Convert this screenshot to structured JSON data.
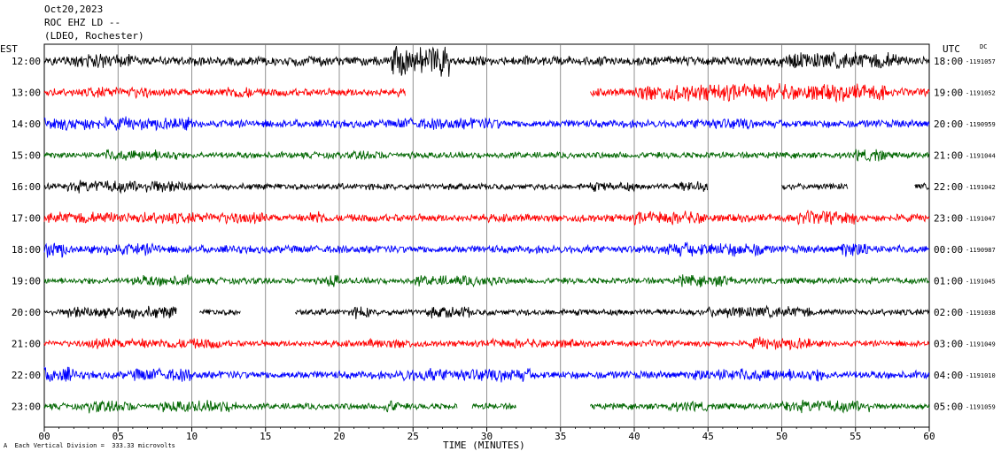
{
  "header": {
    "date": "Oct20,2023",
    "station": "ROC EHZ LD --",
    "network": "(LDEO, Rochester)"
  },
  "corner_left": "EST",
  "corner_right": "UTC",
  "dc_label": "DC",
  "footnote": "Each Vertical Division =  333.33 microvolts",
  "footnote_mark": "A",
  "chart_data": {
    "type": "line",
    "title": "",
    "xlabel": "TIME (MINUTES)",
    "xlim": [
      0,
      60
    ],
    "x_ticks": [
      "00",
      "05",
      "10",
      "15",
      "20",
      "25",
      "30",
      "35",
      "40",
      "45",
      "50",
      "55",
      "60"
    ],
    "grid": true,
    "trace_colors": [
      "#000000",
      "#ff0000",
      "#0000ff",
      "#006600"
    ],
    "rows": [
      {
        "est": "12:00",
        "utc": "18:00",
        "dc": "-1191057",
        "color": "#000000",
        "amp": 6,
        "gaps": [],
        "bursts": [
          [
            23.5,
            27.5,
            3.2
          ],
          [
            2,
            6,
            1.6
          ],
          [
            50,
            58,
            1.8
          ]
        ]
      },
      {
        "est": "13:00",
        "utc": "19:00",
        "dc": "-1191052",
        "color": "#ff0000",
        "amp": 5,
        "gaps": [
          [
            24.5,
            37
          ]
        ],
        "bursts": [
          [
            40,
            57,
            2.2
          ],
          [
            3,
            7,
            1.5
          ],
          [
            12,
            14,
            1.6
          ]
        ]
      },
      {
        "est": "14:00",
        "utc": "20:00",
        "dc": "-1190959",
        "color": "#0000ff",
        "amp": 5,
        "gaps": [],
        "bursts": [
          [
            0,
            10,
            1.7
          ],
          [
            24,
            31,
            1.5
          ],
          [
            44,
            48,
            1.5
          ]
        ]
      },
      {
        "est": "15:00",
        "utc": "21:00",
        "dc": "-1191044",
        "color": "#006600",
        "amp": 4,
        "gaps": [],
        "bursts": [
          [
            4,
            9,
            1.8
          ],
          [
            21,
            23,
            1.6
          ],
          [
            55,
            57,
            2.0
          ]
        ]
      },
      {
        "est": "16:00",
        "utc": "22:00",
        "dc": "-1191042",
        "color": "#000000",
        "amp": 4,
        "gaps": [
          [
            45,
            50
          ],
          [
            54.5,
            59
          ]
        ],
        "bursts": [
          [
            1.5,
            10,
            2.0
          ],
          [
            37,
            40,
            1.5
          ],
          [
            43,
            45,
            1.8
          ]
        ]
      },
      {
        "est": "17:00",
        "utc": "23:00",
        "dc": "-1191047",
        "color": "#ff0000",
        "amp": 5,
        "gaps": [],
        "bursts": [
          [
            0,
            15,
            1.5
          ],
          [
            18,
            19,
            2.0
          ],
          [
            40,
            45,
            1.7
          ],
          [
            51,
            55,
            1.8
          ]
        ]
      },
      {
        "est": "18:00",
        "utc": "00:00",
        "dc": "-1190987",
        "color": "#0000ff",
        "amp": 5,
        "gaps": [],
        "bursts": [
          [
            0,
            1.5,
            2.2
          ],
          [
            4,
            8,
            1.6
          ],
          [
            42,
            49,
            1.8
          ],
          [
            54,
            56,
            2.0
          ]
        ]
      },
      {
        "est": "19:00",
        "utc": "01:00",
        "dc": "-1191045",
        "color": "#006600",
        "amp": 4,
        "gaps": [],
        "bursts": [
          [
            6,
            10,
            1.8
          ],
          [
            19,
            20,
            2.2
          ],
          [
            25,
            31,
            1.7
          ],
          [
            43,
            47,
            1.9
          ]
        ]
      },
      {
        "est": "20:00",
        "utc": "02:00",
        "dc": "-1191038",
        "color": "#000000",
        "amp": 4,
        "gaps": [
          [
            9,
            10.5
          ],
          [
            13.3,
            17
          ]
        ],
        "bursts": [
          [
            1.5,
            9,
            2.0
          ],
          [
            21,
            22,
            2.0
          ],
          [
            26,
            29,
            1.8
          ],
          [
            45,
            52,
            1.8
          ]
        ]
      },
      {
        "est": "21:00",
        "utc": "03:00",
        "dc": "-1191049",
        "color": "#ff0000",
        "amp": 4,
        "gaps": [],
        "bursts": [
          [
            3,
            12,
            1.7
          ],
          [
            22,
            25,
            1.6
          ],
          [
            30,
            36,
            1.5
          ],
          [
            48,
            52,
            2.0
          ]
        ]
      },
      {
        "est": "22:00",
        "utc": "04:00",
        "dc": "-1191010",
        "color": "#0000ff",
        "amp": 5,
        "gaps": [],
        "bursts": [
          [
            0,
            2,
            2.0
          ],
          [
            6,
            10,
            1.7
          ],
          [
            24,
            33,
            1.7
          ],
          [
            44,
            53,
            1.6
          ]
        ]
      },
      {
        "est": "23:00",
        "utc": "05:00",
        "dc": "-1191059",
        "color": "#006600",
        "amp": 4,
        "gaps": [
          [
            28,
            29
          ],
          [
            32,
            37
          ]
        ],
        "bursts": [
          [
            3,
            6,
            2.0
          ],
          [
            8,
            13,
            1.9
          ],
          [
            23,
            24,
            2.2
          ],
          [
            42,
            45,
            1.6
          ],
          [
            50,
            56,
            2.0
          ]
        ]
      }
    ]
  }
}
